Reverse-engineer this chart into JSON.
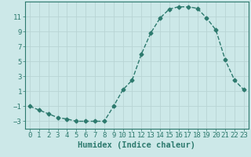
{
  "xlabel": "Humidex (Indice chaleur)",
  "x": [
    0,
    1,
    2,
    3,
    4,
    5,
    6,
    7,
    8,
    9,
    10,
    11,
    12,
    13,
    14,
    15,
    16,
    17,
    18,
    19,
    20,
    21,
    22,
    23
  ],
  "y": [
    -1,
    -1.5,
    -2,
    -2.5,
    -2.7,
    -3,
    -3,
    -3,
    -3,
    -1,
    1.2,
    2.5,
    6,
    8.8,
    10.8,
    12,
    12.3,
    12.3,
    12.1,
    10.8,
    9.2,
    5.2,
    2.5,
    1.2
  ],
  "line_color": "#2d7a6e",
  "bg_color": "#cce8e8",
  "grid_color": "#b8d4d4",
  "tick_color": "#2d7a6e",
  "xlim": [
    -0.5,
    23.5
  ],
  "ylim": [
    -4,
    13
  ],
  "yticks": [
    -3,
    -1,
    1,
    3,
    5,
    7,
    9,
    11
  ],
  "xticks": [
    0,
    1,
    2,
    3,
    4,
    5,
    6,
    7,
    8,
    9,
    10,
    11,
    12,
    13,
    14,
    15,
    16,
    17,
    18,
    19,
    20,
    21,
    22,
    23
  ],
  "marker": "D",
  "marker_size": 2.5,
  "line_width": 1.0,
  "font_size": 6.5,
  "xlabel_font_size": 7.5
}
